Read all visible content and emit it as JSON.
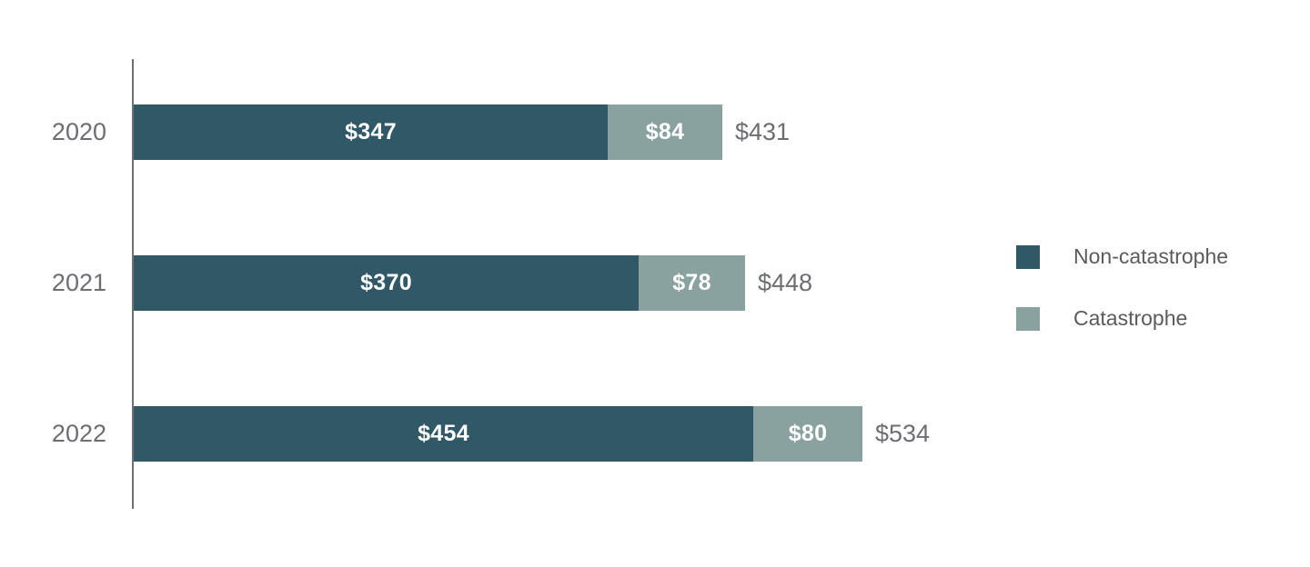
{
  "chart_data": {
    "type": "bar",
    "orientation": "horizontal",
    "stacked": true,
    "categories": [
      "2020",
      "2021",
      "2022"
    ],
    "series": [
      {
        "name": "Non-catastrophe",
        "color": "#305866",
        "values": [
          347,
          370,
          454
        ]
      },
      {
        "name": "Catastrophe",
        "color": "#89a2a0",
        "values": [
          84,
          78,
          80
        ]
      }
    ],
    "totals": [
      431,
      448,
      534
    ],
    "value_prefix": "$",
    "segment_labels": [
      [
        "$347",
        "$84"
      ],
      [
        "$370",
        "$78"
      ],
      [
        "$454",
        "$80"
      ]
    ],
    "total_labels": [
      "$431",
      "$448",
      "$534"
    ],
    "title": "",
    "xlabel": "",
    "ylabel": "",
    "xlim": [
      0,
      534
    ],
    "grid": false,
    "legend_position": "right",
    "axis_color": "#6f7072",
    "label_color": "#6d6e71",
    "bar_label_color": "#ffffff"
  },
  "legend": {
    "items": [
      {
        "label": "Non-catastrophe",
        "color": "#305866"
      },
      {
        "label": "Catastrophe",
        "color": "#89a2a0"
      }
    ]
  }
}
